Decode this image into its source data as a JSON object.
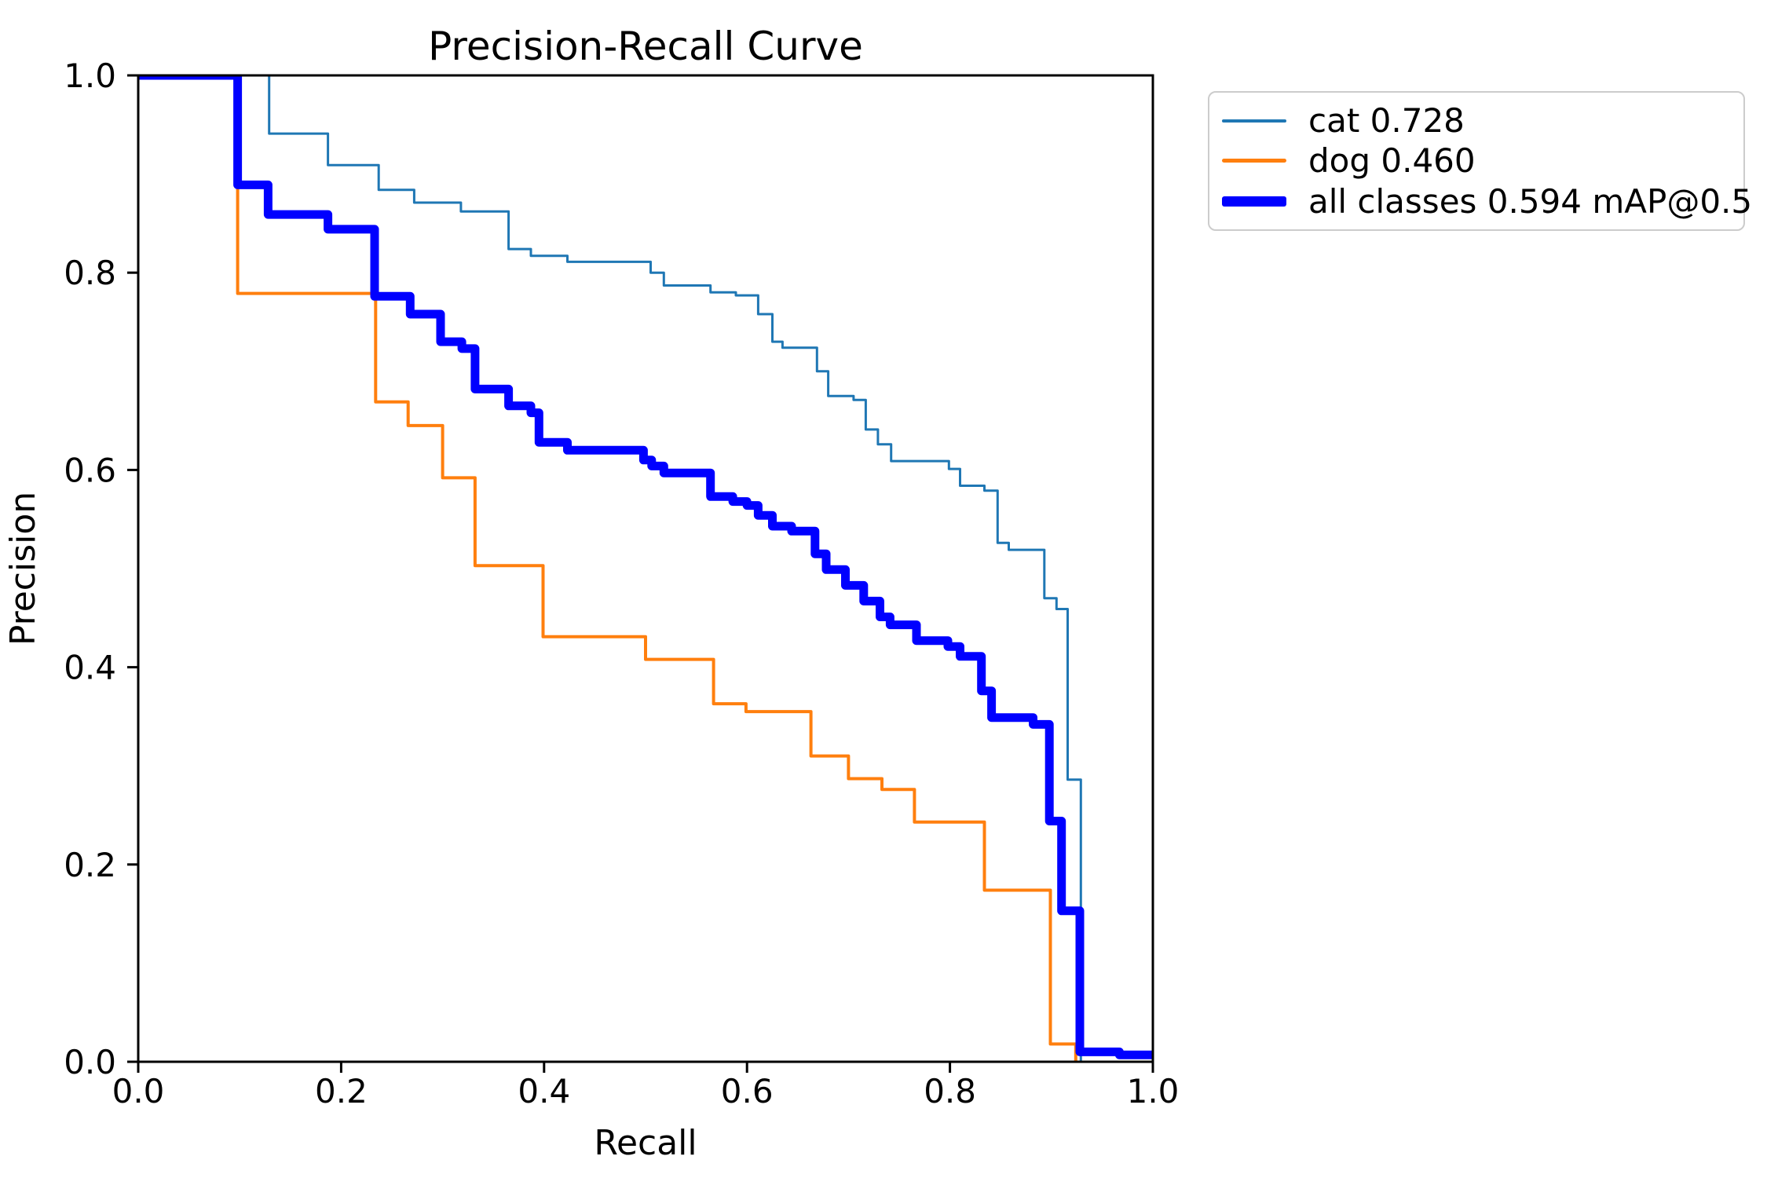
{
  "page": {
    "background": "#ffffff"
  },
  "chart": {
    "title": "Precision-Recall Curve",
    "x_axis": {
      "label": "Recall",
      "ticks": [
        "0.0",
        "0.2",
        "0.4",
        "0.6",
        "0.8",
        "1.0"
      ]
    },
    "y_axis": {
      "label": "Precision",
      "ticks": [
        "0.0",
        "0.2",
        "0.4",
        "0.6",
        "0.8",
        "1.0"
      ]
    },
    "axis_color": "#000000",
    "text_color": "#000000"
  },
  "legend": {
    "entries": [
      {
        "label": "cat 0.728",
        "color": "#1f77b4",
        "thickness": 4
      },
      {
        "label": "dog 0.460",
        "color": "#ff7f0e",
        "thickness": 5
      },
      {
        "label": "all classes 0.594 mAP@0.5",
        "color": "#0000ff",
        "thickness": 13
      }
    ]
  },
  "chart_data": {
    "type": "line",
    "step_style": "post",
    "title": "Precision-Recall Curve",
    "xlabel": "Recall",
    "ylabel": "Precision",
    "xlim": [
      0,
      1
    ],
    "ylim": [
      0,
      1
    ],
    "grid": false,
    "legend_position": "outside-upper-right",
    "series": [
      {
        "name": "cat",
        "ap": 0.728,
        "color": "#1f77b4",
        "linewidth": 3,
        "points": [
          [
            0.0,
            1.0
          ],
          [
            0.129,
            0.941
          ],
          [
            0.187,
            0.909
          ],
          [
            0.237,
            0.884
          ],
          [
            0.272,
            0.871
          ],
          [
            0.318,
            0.862
          ],
          [
            0.365,
            0.824
          ],
          [
            0.387,
            0.817
          ],
          [
            0.423,
            0.811
          ],
          [
            0.505,
            0.8
          ],
          [
            0.518,
            0.787
          ],
          [
            0.564,
            0.78
          ],
          [
            0.589,
            0.777
          ],
          [
            0.611,
            0.758
          ],
          [
            0.625,
            0.73
          ],
          [
            0.635,
            0.724
          ],
          [
            0.669,
            0.7
          ],
          [
            0.68,
            0.675
          ],
          [
            0.705,
            0.671
          ],
          [
            0.717,
            0.641
          ],
          [
            0.729,
            0.626
          ],
          [
            0.742,
            0.609
          ],
          [
            0.799,
            0.601
          ],
          [
            0.81,
            0.584
          ],
          [
            0.834,
            0.579
          ],
          [
            0.847,
            0.526
          ],
          [
            0.858,
            0.519
          ],
          [
            0.893,
            0.47
          ],
          [
            0.905,
            0.459
          ],
          [
            0.916,
            0.286
          ],
          [
            0.929,
            0.0
          ]
        ]
      },
      {
        "name": "dog",
        "ap": 0.46,
        "color": "#ff7f0e",
        "linewidth": 4,
        "points": [
          [
            0.0,
            1.0
          ],
          [
            0.098,
            0.779
          ],
          [
            0.234,
            0.669
          ],
          [
            0.266,
            0.645
          ],
          [
            0.3,
            0.592
          ],
          [
            0.332,
            0.503
          ],
          [
            0.399,
            0.431
          ],
          [
            0.5,
            0.408
          ],
          [
            0.567,
            0.363
          ],
          [
            0.599,
            0.355
          ],
          [
            0.663,
            0.31
          ],
          [
            0.7,
            0.287
          ],
          [
            0.733,
            0.276
          ],
          [
            0.765,
            0.243
          ],
          [
            0.834,
            0.174
          ],
          [
            0.899,
            0.018
          ],
          [
            0.924,
            0.0
          ]
        ]
      },
      {
        "name": "all classes",
        "map_at_0_5": 0.594,
        "color": "#0000ff",
        "linewidth": 11,
        "points": [
          [
            0.0,
            1.0
          ],
          [
            0.098,
            0.889
          ],
          [
            0.128,
            0.859
          ],
          [
            0.187,
            0.844
          ],
          [
            0.233,
            0.776
          ],
          [
            0.268,
            0.758
          ],
          [
            0.298,
            0.73
          ],
          [
            0.319,
            0.723
          ],
          [
            0.332,
            0.682
          ],
          [
            0.365,
            0.665
          ],
          [
            0.387,
            0.658
          ],
          [
            0.395,
            0.628
          ],
          [
            0.423,
            0.62
          ],
          [
            0.498,
            0.61
          ],
          [
            0.506,
            0.604
          ],
          [
            0.518,
            0.597
          ],
          [
            0.564,
            0.573
          ],
          [
            0.586,
            0.568
          ],
          [
            0.6,
            0.564
          ],
          [
            0.611,
            0.554
          ],
          [
            0.625,
            0.543
          ],
          [
            0.644,
            0.538
          ],
          [
            0.667,
            0.515
          ],
          [
            0.678,
            0.499
          ],
          [
            0.697,
            0.483
          ],
          [
            0.715,
            0.467
          ],
          [
            0.731,
            0.451
          ],
          [
            0.741,
            0.443
          ],
          [
            0.767,
            0.427
          ],
          [
            0.798,
            0.421
          ],
          [
            0.81,
            0.411
          ],
          [
            0.831,
            0.376
          ],
          [
            0.841,
            0.349
          ],
          [
            0.882,
            0.342
          ],
          [
            0.898,
            0.244
          ],
          [
            0.91,
            0.153
          ],
          [
            0.928,
            0.01
          ],
          [
            0.967,
            0.007
          ],
          [
            1.0,
            0.005
          ]
        ]
      }
    ]
  }
}
